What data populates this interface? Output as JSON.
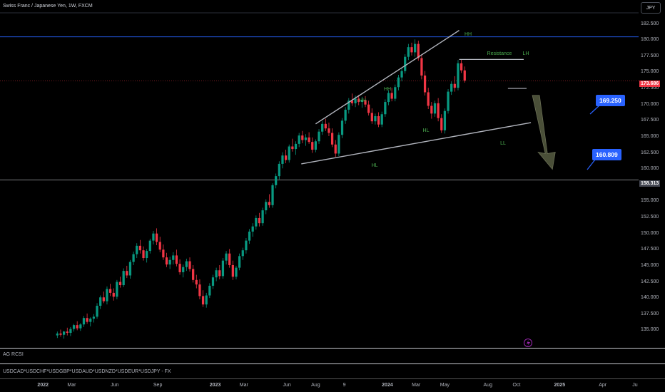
{
  "header": {
    "symbol": "Swiss Franc / Japanese Yen, 1W, FXCM"
  },
  "currency_button": "JPY",
  "indicator_panel_1": "AG RCSI",
  "indicator_panel_2": "USDCAD*USDCHF*USDGBP*USDAUD*USDNZD*USDEUR*USDJPY - FX",
  "price_tags": {
    "current": "173.686",
    "level": "158.313"
  },
  "callouts": {
    "upper": "169.250",
    "lower": "160.809"
  },
  "annotations": {
    "hh1": "HH",
    "hh2": "HH",
    "hh3": "HH",
    "hl1": "HL",
    "hl2": "HL",
    "ll": "LL",
    "lh": "LH",
    "resistance": "Resistance"
  },
  "colors": {
    "up": "#089981",
    "down": "#f23645",
    "pattern": "#b2b5be",
    "label": "#4caf50",
    "accent": "#2962ff"
  },
  "chart_data": {
    "type": "candlestick",
    "ylim": [
      132.5,
      184.0
    ],
    "yticks": [
      "182.500",
      "180.000",
      "177.500",
      "175.000",
      "172.500",
      "170.000",
      "167.500",
      "165.000",
      "162.500",
      "160.000",
      "157.500",
      "155.000",
      "152.500",
      "150.000",
      "147.500",
      "145.000",
      "142.500",
      "140.000",
      "137.500",
      "135.000"
    ],
    "xticks": [
      "2022",
      "Mar",
      "Jun",
      "Sep",
      "2023",
      "Mar",
      "Jun",
      "Aug",
      "9",
      "2024",
      "Mar",
      "May",
      "Aug",
      "Oct",
      "2025",
      "Apr",
      "Ju"
    ],
    "x_range": [
      "2021-11",
      "2025-07"
    ],
    "candle_start": "2022-02",
    "candles": [
      [
        134.2,
        134.8,
        133.8,
        134.5
      ],
      [
        134.5,
        135.1,
        134.0,
        134.3
      ],
      [
        134.3,
        134.9,
        133.7,
        134.8
      ],
      [
        134.8,
        135.4,
        134.2,
        134.6
      ],
      [
        134.6,
        135.5,
        134.1,
        135.2
      ],
      [
        135.2,
        136.0,
        134.8,
        135.8
      ],
      [
        135.8,
        136.4,
        135.0,
        135.3
      ],
      [
        135.3,
        136.1,
        134.9,
        135.9
      ],
      [
        135.9,
        137.2,
        135.5,
        136.9
      ],
      [
        136.9,
        137.6,
        136.0,
        136.3
      ],
      [
        136.3,
        137.0,
        135.6,
        136.8
      ],
      [
        136.8,
        137.5,
        136.2,
        137.1
      ],
      [
        137.1,
        139.2,
        136.8,
        138.8
      ],
      [
        138.8,
        140.4,
        138.3,
        140.1
      ],
      [
        140.1,
        141.0,
        139.2,
        139.5
      ],
      [
        139.5,
        141.8,
        139.0,
        141.4
      ],
      [
        141.4,
        142.2,
        140.3,
        140.8
      ],
      [
        140.8,
        141.5,
        139.6,
        140.2
      ],
      [
        140.2,
        142.8,
        139.8,
        142.5
      ],
      [
        142.5,
        143.3,
        141.6,
        142.0
      ],
      [
        142.0,
        144.6,
        141.7,
        144.2
      ],
      [
        144.2,
        145.0,
        143.1,
        143.5
      ],
      [
        143.5,
        145.9,
        143.0,
        145.6
      ],
      [
        145.6,
        147.2,
        145.1,
        146.8
      ],
      [
        146.8,
        148.5,
        146.2,
        148.1
      ],
      [
        148.1,
        149.0,
        146.9,
        147.4
      ],
      [
        147.4,
        148.0,
        145.8,
        146.2
      ],
      [
        146.2,
        147.6,
        145.5,
        147.3
      ],
      [
        147.3,
        149.2,
        146.9,
        148.9
      ],
      [
        148.9,
        150.4,
        148.3,
        150.0
      ],
      [
        150.0,
        150.8,
        148.2,
        148.7
      ],
      [
        148.7,
        149.5,
        147.1,
        147.5
      ],
      [
        147.5,
        148.3,
        145.9,
        146.3
      ],
      [
        146.3,
        147.0,
        144.8,
        145.2
      ],
      [
        145.2,
        146.4,
        144.5,
        145.9
      ],
      [
        145.9,
        147.1,
        145.2,
        146.6
      ],
      [
        146.6,
        147.5,
        144.9,
        145.3
      ],
      [
        145.3,
        146.0,
        143.6,
        144.0
      ],
      [
        144.0,
        145.2,
        143.2,
        144.8
      ],
      [
        144.8,
        146.1,
        144.2,
        145.7
      ],
      [
        145.7,
        146.3,
        144.1,
        144.5
      ],
      [
        144.5,
        145.1,
        142.4,
        142.8
      ],
      [
        142.8,
        143.6,
        141.5,
        142.1
      ],
      [
        142.1,
        142.9,
        139.8,
        140.3
      ],
      [
        140.3,
        141.2,
        138.6,
        139.0
      ],
      [
        139.0,
        140.8,
        138.5,
        140.4
      ],
      [
        140.4,
        142.3,
        140.0,
        141.9
      ],
      [
        141.9,
        143.6,
        141.4,
        143.2
      ],
      [
        143.2,
        144.7,
        142.6,
        144.3
      ],
      [
        144.3,
        145.1,
        142.9,
        143.4
      ],
      [
        143.4,
        146.2,
        143.0,
        145.8
      ],
      [
        145.8,
        147.3,
        145.2,
        146.9
      ],
      [
        146.9,
        147.6,
        144.7,
        145.1
      ],
      [
        145.1,
        145.8,
        142.8,
        143.3
      ],
      [
        143.3,
        145.0,
        142.9,
        144.7
      ],
      [
        144.7,
        146.9,
        144.3,
        146.5
      ],
      [
        146.5,
        147.8,
        145.9,
        147.4
      ],
      [
        147.4,
        149.3,
        146.9,
        148.9
      ],
      [
        148.9,
        150.7,
        148.4,
        150.3
      ],
      [
        150.3,
        151.6,
        149.5,
        151.1
      ],
      [
        151.1,
        152.8,
        150.6,
        152.4
      ],
      [
        152.4,
        153.2,
        151.1,
        151.6
      ],
      [
        151.6,
        154.0,
        151.2,
        153.6
      ],
      [
        153.6,
        155.3,
        153.0,
        154.9
      ],
      [
        154.9,
        156.1,
        154.0,
        154.4
      ],
      [
        154.4,
        157.8,
        154.0,
        157.5
      ],
      [
        157.5,
        159.3,
        157.0,
        158.9
      ],
      [
        158.9,
        161.2,
        158.4,
        160.8
      ],
      [
        160.8,
        162.6,
        160.1,
        162.1
      ],
      [
        162.1,
        163.0,
        160.9,
        161.4
      ],
      [
        161.4,
        163.8,
        161.0,
        163.5
      ],
      [
        163.5,
        164.7,
        162.7,
        163.1
      ],
      [
        163.1,
        164.3,
        162.2,
        163.9
      ],
      [
        163.9,
        165.6,
        163.4,
        165.2
      ],
      [
        165.2,
        165.9,
        164.0,
        164.5
      ],
      [
        164.5,
        165.4,
        163.6,
        164.9
      ],
      [
        164.9,
        165.7,
        163.9,
        164.2
      ],
      [
        164.2,
        164.9,
        162.5,
        163.0
      ],
      [
        163.0,
        164.6,
        162.6,
        164.3
      ],
      [
        164.3,
        166.2,
        163.9,
        165.8
      ],
      [
        165.8,
        167.4,
        165.3,
        167.0
      ],
      [
        167.0,
        167.8,
        165.9,
        166.3
      ],
      [
        166.3,
        167.2,
        165.1,
        165.6
      ],
      [
        165.6,
        166.3,
        163.4,
        163.8
      ],
      [
        163.8,
        164.5,
        161.9,
        162.4
      ],
      [
        162.4,
        165.7,
        162.0,
        165.3
      ],
      [
        165.3,
        167.9,
        164.8,
        167.5
      ],
      [
        167.5,
        169.6,
        167.0,
        169.2
      ],
      [
        169.2,
        171.0,
        168.6,
        170.6
      ],
      [
        170.6,
        171.7,
        169.8,
        170.2
      ],
      [
        170.2,
        171.4,
        169.6,
        170.9
      ],
      [
        170.9,
        171.5,
        169.9,
        170.4
      ],
      [
        170.4,
        171.2,
        169.5,
        170.7
      ],
      [
        170.7,
        171.3,
        169.6,
        170.0
      ],
      [
        170.0,
        170.6,
        168.3,
        168.7
      ],
      [
        168.7,
        169.4,
        167.0,
        167.4
      ],
      [
        167.4,
        168.6,
        166.9,
        168.2
      ],
      [
        168.2,
        168.8,
        166.5,
        166.9
      ],
      [
        166.9,
        168.9,
        166.5,
        168.5
      ],
      [
        168.5,
        170.8,
        168.1,
        170.4
      ],
      [
        170.4,
        172.2,
        169.9,
        171.8
      ],
      [
        171.8,
        172.6,
        170.5,
        170.9
      ],
      [
        170.9,
        173.1,
        170.5,
        172.7
      ],
      [
        172.7,
        174.6,
        172.2,
        174.2
      ],
      [
        174.2,
        175.6,
        173.6,
        175.2
      ],
      [
        175.2,
        177.8,
        174.8,
        177.4
      ],
      [
        177.4,
        179.4,
        176.9,
        178.9
      ],
      [
        178.9,
        179.6,
        177.6,
        178.1
      ],
      [
        178.1,
        180.1,
        177.4,
        179.4
      ],
      [
        179.4,
        179.9,
        176.8,
        177.2
      ],
      [
        177.2,
        177.8,
        173.9,
        174.5
      ],
      [
        174.5,
        175.2,
        171.4,
        171.9
      ],
      [
        171.9,
        172.6,
        169.3,
        169.8
      ],
      [
        169.8,
        170.4,
        167.8,
        168.6
      ],
      [
        168.6,
        170.6,
        168.1,
        170.2
      ],
      [
        170.2,
        171.0,
        167.4,
        167.9
      ],
      [
        167.9,
        168.5,
        165.6,
        166.0
      ],
      [
        166.0,
        169.4,
        165.5,
        169.0
      ],
      [
        169.0,
        172.4,
        168.6,
        172.0
      ],
      [
        172.0,
        173.6,
        171.5,
        173.2
      ],
      [
        173.2,
        174.4,
        172.0,
        172.6
      ],
      [
        172.6,
        176.9,
        172.2,
        176.4
      ],
      [
        176.4,
        177.0,
        174.9,
        175.3
      ],
      [
        175.3,
        175.9,
        173.4,
        173.7
      ]
    ],
    "levels": [
      180.5,
      173.686,
      158.313
    ],
    "wedge": {
      "upper": [
        [
          "2023-08",
          167.0
        ],
        [
          "2024-06",
          181.5
        ]
      ],
      "lower": [
        [
          "2023-07",
          160.8
        ],
        [
          "2024-11",
          167.2
        ]
      ]
    },
    "resistance_line": {
      "from": "2024-06",
      "to": "2024-10",
      "price": 177.0
    },
    "support_stub": {
      "from": "2024-09",
      "to": "2024-10",
      "price": 172.5
    },
    "projection": {
      "direction": "down",
      "from": [
        "2024-11",
        169.0
      ],
      "to": [
        "2024-12",
        159.3
      ]
    }
  }
}
